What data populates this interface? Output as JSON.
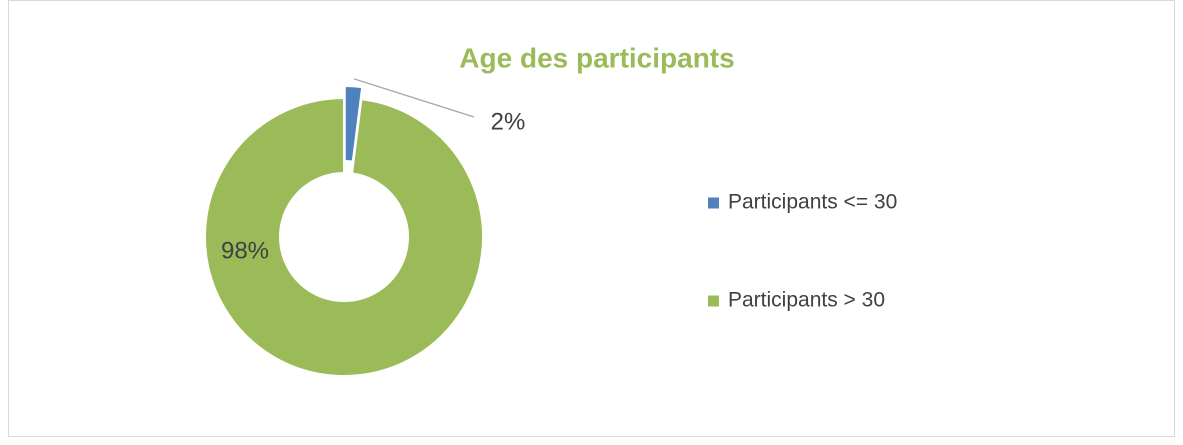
{
  "chart_data": {
    "type": "donut",
    "title": "Age des participants",
    "categories": [
      "Participants <= 30",
      "Participants > 30"
    ],
    "values": [
      2,
      98
    ],
    "value_labels": [
      "2%",
      "98%"
    ],
    "colors": [
      "#4f81bd",
      "#9bbb59"
    ]
  }
}
